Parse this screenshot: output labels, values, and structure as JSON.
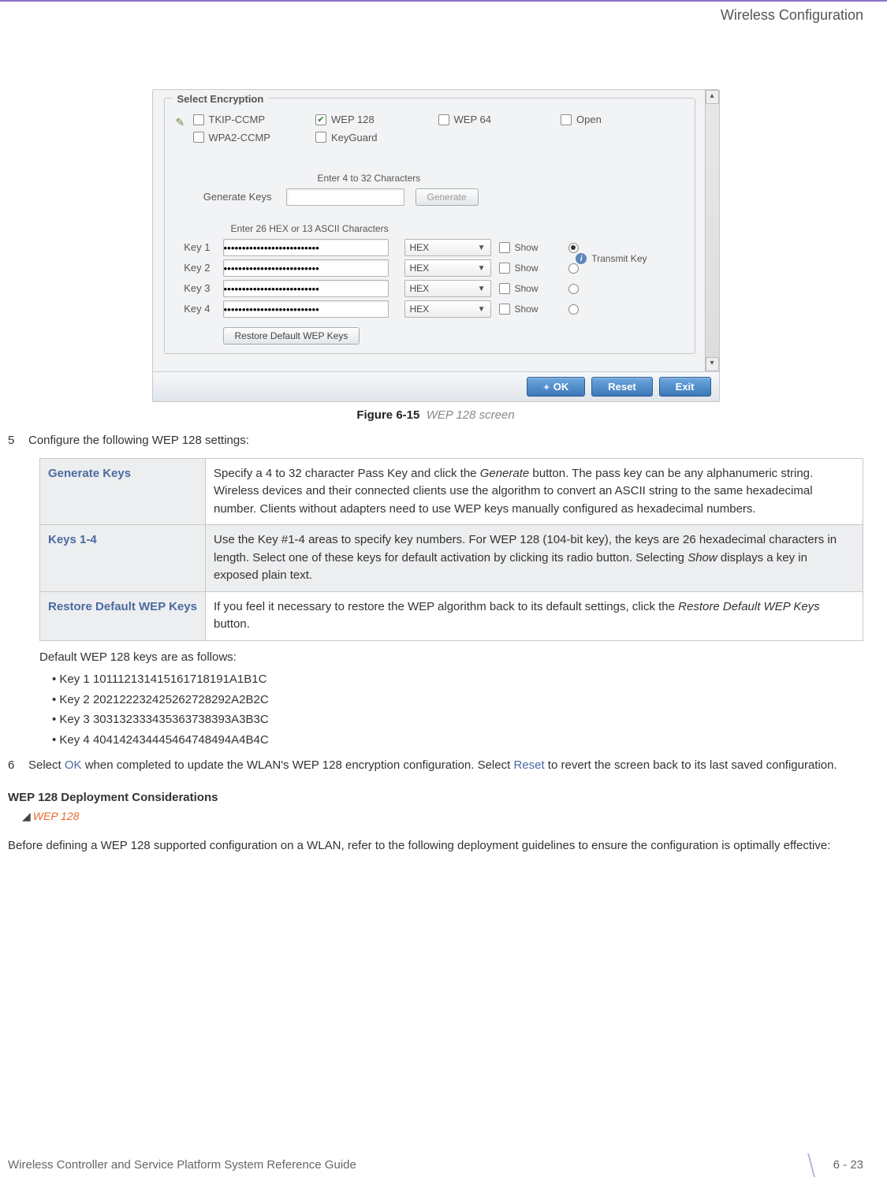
{
  "header": {
    "section_title": "Wireless Configuration"
  },
  "screenshot": {
    "fieldset_title": "Select Encryption",
    "encryption_options": {
      "col1": [
        {
          "label": "TKIP-CCMP",
          "checked": false
        },
        {
          "label": "WPA2-CCMP",
          "checked": false
        }
      ],
      "col2": [
        {
          "label": "WEP 128",
          "checked": true
        },
        {
          "label": "KeyGuard",
          "checked": false
        }
      ],
      "col3": [
        {
          "label": "WEP 64",
          "checked": false
        }
      ],
      "col4": [
        {
          "label": "Open",
          "checked": false
        }
      ]
    },
    "generate": {
      "hint": "Enter 4 to 32 Characters",
      "label": "Generate Keys",
      "button": "Generate"
    },
    "keys": {
      "hint": "Enter 26 HEX or 13 ASCII Characters",
      "transmit_label": "Transmit Key",
      "rows": [
        {
          "label": "Key 1",
          "value": "••••••••••••••••••••••••••",
          "format": "HEX",
          "show": "Show",
          "selected": true
        },
        {
          "label": "Key 2",
          "value": "••••••••••••••••••••••••••",
          "format": "HEX",
          "show": "Show",
          "selected": false
        },
        {
          "label": "Key 3",
          "value": "••••••••••••••••••••••••••",
          "format": "HEX",
          "show": "Show",
          "selected": false
        },
        {
          "label": "Key 4",
          "value": "••••••••••••••••••••••••••",
          "format": "HEX",
          "show": "Show",
          "selected": false
        }
      ],
      "restore_button": "Restore Default WEP Keys"
    },
    "bottom_buttons": {
      "ok": "OK",
      "reset": "Reset",
      "exit": "Exit"
    }
  },
  "figure": {
    "number": "Figure 6-15",
    "caption": "WEP 128 screen"
  },
  "step5": {
    "num": "5",
    "text": "Configure the following WEP 128 settings:",
    "table": [
      {
        "label": "Generate Keys",
        "desc_parts": [
          "Specify a 4 to 32 character Pass Key and click the ",
          "Generate",
          " button. The pass key can be any alphanumeric string. Wireless devices and their connected clients use the algorithm to convert an ASCII string to the same hexadecimal number. Clients without adapters need to use WEP keys manually configured as hexadecimal numbers."
        ]
      },
      {
        "label": "Keys 1-4",
        "desc_parts": [
          "Use the Key #1-4 areas to specify key numbers. For WEP 128 (104-bit key), the keys are 26 hexadecimal characters in length. Select one of these keys for default activation by clicking its radio button. Selecting ",
          "Show",
          " displays a key in exposed plain text."
        ]
      },
      {
        "label": "Restore Default WEP Keys",
        "desc_parts": [
          "If you feel it necessary to restore the WEP algorithm back to its default settings, click the ",
          "Restore Default WEP Keys",
          " button."
        ]
      }
    ],
    "default_intro": "Default WEP 128 keys are as follows:",
    "default_keys": [
      "Key 1 101112131415161718191A1B1C",
      "Key 2 202122232425262728292A2B2C",
      "Key 3 303132333435363738393A3B3C",
      "Key 4 404142434445464748494A4B4C"
    ]
  },
  "step6": {
    "num": "6",
    "parts": [
      "Select ",
      "OK",
      " when completed to update the WLAN's WEP 128 encryption configuration. Select ",
      "Reset",
      " to revert the screen back to its last saved configuration."
    ]
  },
  "deploy": {
    "heading": "WEP 128 Deployment Considerations",
    "crumb": "WEP 128",
    "body": "Before defining a WEP 128 supported configuration on a WLAN, refer to the following deployment guidelines to ensure the configuration is optimally effective:"
  },
  "footer": {
    "left": "Wireless Controller and Service Platform System Reference Guide",
    "right": "6 - 23"
  }
}
